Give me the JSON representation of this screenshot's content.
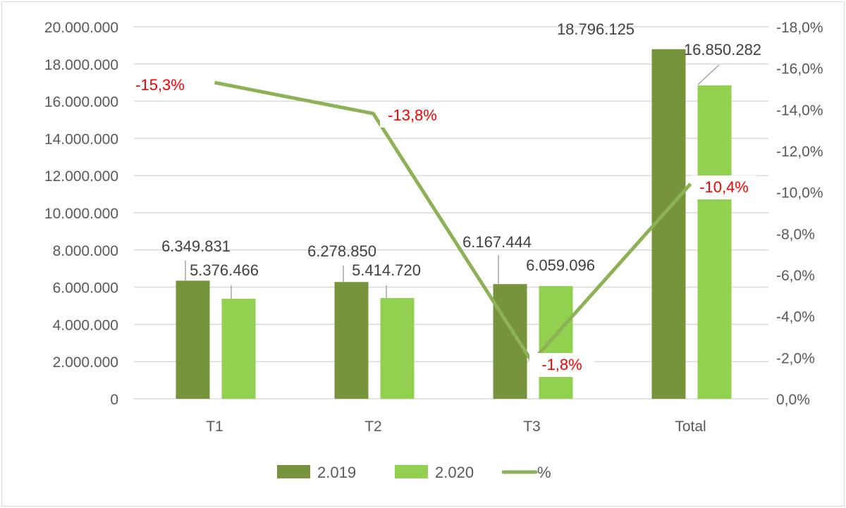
{
  "chart_data": {
    "type": "bar",
    "categories": [
      "T1",
      "T2",
      "T3",
      "Total"
    ],
    "series": [
      {
        "name": "2.019",
        "type": "bar",
        "axis": "left",
        "color": "#77933c",
        "values": [
          6349831,
          6278850,
          6167444,
          18796125
        ],
        "labels": [
          "6.349.831",
          "6.278.850",
          "6.167.444",
          "18.796.125"
        ]
      },
      {
        "name": "2.020",
        "type": "bar",
        "axis": "left",
        "color": "#92d050",
        "values": [
          5376466,
          5414720,
          6059096,
          16850282
        ],
        "labels": [
          "5.376.466",
          "5.414.720",
          "6.059.096",
          "16.850.282"
        ]
      },
      {
        "name": "%",
        "type": "line",
        "axis": "right",
        "color": "#8db255",
        "values": [
          -15.3,
          -13.8,
          -1.8,
          -10.4
        ],
        "labels": [
          "-15,3%",
          "-13,8%",
          "-1,8%",
          "-10,4%"
        ],
        "label_color": "#ff0000"
      }
    ],
    "y_left": {
      "min": 0,
      "max": 20000000,
      "ticks": [
        "0",
        "2.000.000",
        "4.000.000",
        "6.000.000",
        "8.000.000",
        "10.000.000",
        "12.000.000",
        "14.000.000",
        "16.000.000",
        "18.000.000",
        "20.000.000"
      ]
    },
    "y_right": {
      "min": 0,
      "max": -18,
      "reversed": true,
      "ticks": [
        "0,0%",
        "-2,0%",
        "-4,0%",
        "-6,0%",
        "-8,0%",
        "-10,0%",
        "-12,0%",
        "-14,0%",
        "-16,0%",
        "-18,0%"
      ]
    },
    "grid": true,
    "legend": "bottom",
    "title": "",
    "xlabel": "",
    "ylabel": ""
  }
}
